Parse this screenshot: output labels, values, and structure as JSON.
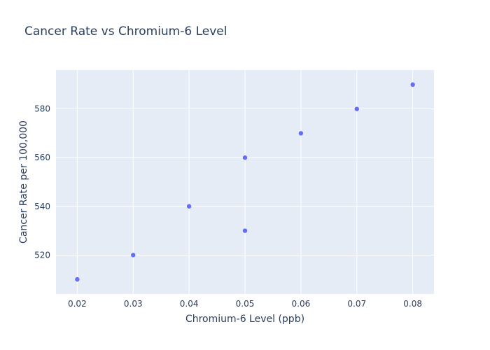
{
  "chart_data": {
    "type": "scatter",
    "title": "Cancer Rate vs Chromium-6 Level",
    "xlabel": "Chromium-6 Level (ppb)",
    "ylabel": "Cancer Rate per 100,000",
    "xlim": [
      0.0162,
      0.0838
    ],
    "ylim": [
      504,
      596
    ],
    "xticks": [
      0.02,
      0.03,
      0.04,
      0.05,
      0.06,
      0.07,
      0.08
    ],
    "xtick_labels": [
      "0.02",
      "0.03",
      "0.04",
      "0.05",
      "0.06",
      "0.07",
      "0.08"
    ],
    "yticks": [
      520,
      540,
      560,
      580
    ],
    "ytick_labels": [
      "520",
      "540",
      "560",
      "580"
    ],
    "grid": true,
    "legend": "none",
    "colors": {
      "marker": "#636efa",
      "plot_bg": "#e5ecf6",
      "grid": "#ffffff",
      "text": "#2a3f5f"
    },
    "points": [
      {
        "x": 0.02,
        "y": 510
      },
      {
        "x": 0.03,
        "y": 520
      },
      {
        "x": 0.04,
        "y": 540
      },
      {
        "x": 0.05,
        "y": 530
      },
      {
        "x": 0.05,
        "y": 560
      },
      {
        "x": 0.06,
        "y": 570
      },
      {
        "x": 0.07,
        "y": 580
      },
      {
        "x": 0.08,
        "y": 590
      }
    ]
  }
}
